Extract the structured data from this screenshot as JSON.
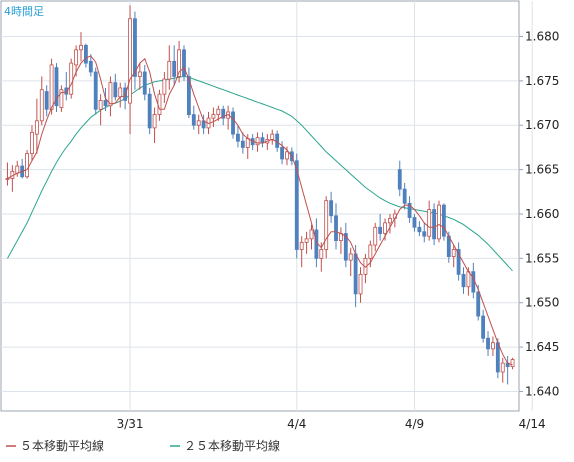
{
  "chart_data": {
    "type": "candlestick",
    "timeframe_label": "4時間足",
    "y_ticks": [
      "1.680",
      "1.675",
      "1.670",
      "1.665",
      "1.660",
      "1.655",
      "1.650",
      "1.645",
      "1.640"
    ],
    "y_tick_values": [
      1.68,
      1.675,
      1.67,
      1.665,
      1.66,
      1.655,
      1.65,
      1.645,
      1.64
    ],
    "ylim": [
      1.6378,
      1.684
    ],
    "x_ticks": [
      {
        "label": "3/31",
        "index": 25
      },
      {
        "label": "4/4",
        "index": 59
      },
      {
        "label": "4/9",
        "index": 83
      },
      {
        "label": "4/14",
        "index": 107
      }
    ],
    "legend": [
      {
        "label": "５本移動平均線",
        "color": "#c0504d"
      },
      {
        "label": "２５本移動平均線",
        "color": "#2ca58d"
      }
    ],
    "colors": {
      "up": "#ffffff",
      "up_border": "#c0504d",
      "down": "#4f81bd",
      "down_border": "#4f81bd",
      "grid": "#dde3ea",
      "axis": "#9aa4b2"
    },
    "grid": true,
    "legend_position": "bottom-left",
    "candles": [
      {
        "o": 1.664,
        "h": 1.6658,
        "l": 1.6632,
        "c": 1.664
      },
      {
        "o": 1.664,
        "h": 1.6655,
        "l": 1.6625,
        "c": 1.6648
      },
      {
        "o": 1.6646,
        "h": 1.666,
        "l": 1.6642,
        "c": 1.6654
      },
      {
        "o": 1.6654,
        "h": 1.6662,
        "l": 1.664,
        "c": 1.6642
      },
      {
        "o": 1.6642,
        "h": 1.6672,
        "l": 1.664,
        "c": 1.6668
      },
      {
        "o": 1.6668,
        "h": 1.67,
        "l": 1.666,
        "c": 1.6692
      },
      {
        "o": 1.669,
        "h": 1.673,
        "l": 1.6668,
        "c": 1.6705
      },
      {
        "o": 1.6705,
        "h": 1.6755,
        "l": 1.67,
        "c": 1.674
      },
      {
        "o": 1.6738,
        "h": 1.6745,
        "l": 1.671,
        "c": 1.6718
      },
      {
        "o": 1.6718,
        "h": 1.6775,
        "l": 1.6712,
        "c": 1.6768
      },
      {
        "o": 1.6765,
        "h": 1.677,
        "l": 1.6715,
        "c": 1.6722
      },
      {
        "o": 1.672,
        "h": 1.6745,
        "l": 1.6715,
        "c": 1.674
      },
      {
        "o": 1.6742,
        "h": 1.676,
        "l": 1.6728,
        "c": 1.6735
      },
      {
        "o": 1.6735,
        "h": 1.6775,
        "l": 1.673,
        "c": 1.677
      },
      {
        "o": 1.6768,
        "h": 1.679,
        "l": 1.6755,
        "c": 1.6785
      },
      {
        "o": 1.6785,
        "h": 1.6805,
        "l": 1.6772,
        "c": 1.679
      },
      {
        "o": 1.679,
        "h": 1.6792,
        "l": 1.6765,
        "c": 1.677
      },
      {
        "o": 1.6772,
        "h": 1.678,
        "l": 1.6755,
        "c": 1.676
      },
      {
        "o": 1.676,
        "h": 1.6765,
        "l": 1.6712,
        "c": 1.6718
      },
      {
        "o": 1.6718,
        "h": 1.6735,
        "l": 1.67,
        "c": 1.6728
      },
      {
        "o": 1.6728,
        "h": 1.6742,
        "l": 1.6716,
        "c": 1.6722
      },
      {
        "o": 1.6722,
        "h": 1.6755,
        "l": 1.671,
        "c": 1.6748
      },
      {
        "o": 1.6748,
        "h": 1.6758,
        "l": 1.6728,
        "c": 1.6732
      },
      {
        "o": 1.6732,
        "h": 1.6748,
        "l": 1.672,
        "c": 1.6742
      },
      {
        "o": 1.6742,
        "h": 1.6748,
        "l": 1.6718,
        "c": 1.6728
      },
      {
        "o": 1.6725,
        "h": 1.6835,
        "l": 1.669,
        "c": 1.682
      },
      {
        "o": 1.682,
        "h": 1.6828,
        "l": 1.674,
        "c": 1.6755
      },
      {
        "o": 1.6755,
        "h": 1.677,
        "l": 1.674,
        "c": 1.676
      },
      {
        "o": 1.676,
        "h": 1.6768,
        "l": 1.6728,
        "c": 1.6735
      },
      {
        "o": 1.6735,
        "h": 1.6742,
        "l": 1.669,
        "c": 1.6697
      },
      {
        "o": 1.6697,
        "h": 1.672,
        "l": 1.668,
        "c": 1.6712
      },
      {
        "o": 1.6712,
        "h": 1.674,
        "l": 1.6705,
        "c": 1.6735
      },
      {
        "o": 1.6735,
        "h": 1.676,
        "l": 1.6725,
        "c": 1.6752
      },
      {
        "o": 1.6752,
        "h": 1.679,
        "l": 1.674,
        "c": 1.6772
      },
      {
        "o": 1.6772,
        "h": 1.679,
        "l": 1.6745,
        "c": 1.6755
      },
      {
        "o": 1.6755,
        "h": 1.6795,
        "l": 1.6748,
        "c": 1.6785
      },
      {
        "o": 1.6785,
        "h": 1.679,
        "l": 1.675,
        "c": 1.6755
      },
      {
        "o": 1.6755,
        "h": 1.6765,
        "l": 1.6708,
        "c": 1.6712
      },
      {
        "o": 1.6712,
        "h": 1.6722,
        "l": 1.6695,
        "c": 1.67
      },
      {
        "o": 1.67,
        "h": 1.6712,
        "l": 1.669,
        "c": 1.6705
      },
      {
        "o": 1.6705,
        "h": 1.6712,
        "l": 1.669,
        "c": 1.6697
      },
      {
        "o": 1.6697,
        "h": 1.6715,
        "l": 1.669,
        "c": 1.6708
      },
      {
        "o": 1.6708,
        "h": 1.672,
        "l": 1.6698,
        "c": 1.6712
      },
      {
        "o": 1.6712,
        "h": 1.6722,
        "l": 1.6705,
        "c": 1.6718
      },
      {
        "o": 1.6718,
        "h": 1.6722,
        "l": 1.67,
        "c": 1.6708
      },
      {
        "o": 1.6708,
        "h": 1.6722,
        "l": 1.6695,
        "c": 1.6715
      },
      {
        "o": 1.6715,
        "h": 1.672,
        "l": 1.6685,
        "c": 1.669
      },
      {
        "o": 1.669,
        "h": 1.67,
        "l": 1.6675,
        "c": 1.6682
      },
      {
        "o": 1.6682,
        "h": 1.6692,
        "l": 1.6668,
        "c": 1.6675
      },
      {
        "o": 1.6675,
        "h": 1.669,
        "l": 1.6662,
        "c": 1.6685
      },
      {
        "o": 1.6685,
        "h": 1.669,
        "l": 1.6672,
        "c": 1.6678
      },
      {
        "o": 1.6678,
        "h": 1.6692,
        "l": 1.667,
        "c": 1.6686
      },
      {
        "o": 1.6686,
        "h": 1.6692,
        "l": 1.6675,
        "c": 1.668
      },
      {
        "o": 1.668,
        "h": 1.669,
        "l": 1.6672,
        "c": 1.6684
      },
      {
        "o": 1.6684,
        "h": 1.6695,
        "l": 1.6678,
        "c": 1.669
      },
      {
        "o": 1.669,
        "h": 1.6694,
        "l": 1.667,
        "c": 1.6675
      },
      {
        "o": 1.6675,
        "h": 1.6682,
        "l": 1.6656,
        "c": 1.6662
      },
      {
        "o": 1.6662,
        "h": 1.6676,
        "l": 1.6655,
        "c": 1.667
      },
      {
        "o": 1.667,
        "h": 1.6675,
        "l": 1.6655,
        "c": 1.666
      },
      {
        "o": 1.666,
        "h": 1.6668,
        "l": 1.655,
        "c": 1.656
      },
      {
        "o": 1.656,
        "h": 1.6575,
        "l": 1.654,
        "c": 1.6568
      },
      {
        "o": 1.6568,
        "h": 1.658,
        "l": 1.6555,
        "c": 1.6572
      },
      {
        "o": 1.6572,
        "h": 1.6588,
        "l": 1.656,
        "c": 1.6582
      },
      {
        "o": 1.6582,
        "h": 1.6595,
        "l": 1.654,
        "c": 1.655
      },
      {
        "o": 1.655,
        "h": 1.6568,
        "l": 1.6535,
        "c": 1.656
      },
      {
        "o": 1.656,
        "h": 1.662,
        "l": 1.655,
        "c": 1.6615
      },
      {
        "o": 1.6615,
        "h": 1.6625,
        "l": 1.659,
        "c": 1.6598
      },
      {
        "o": 1.6598,
        "h": 1.6612,
        "l": 1.656,
        "c": 1.657
      },
      {
        "o": 1.657,
        "h": 1.6585,
        "l": 1.6555,
        "c": 1.6578
      },
      {
        "o": 1.6578,
        "h": 1.659,
        "l": 1.654,
        "c": 1.6548
      },
      {
        "o": 1.6548,
        "h": 1.6562,
        "l": 1.653,
        "c": 1.6555
      },
      {
        "o": 1.6555,
        "h": 1.6565,
        "l": 1.6495,
        "c": 1.651
      },
      {
        "o": 1.651,
        "h": 1.654,
        "l": 1.65,
        "c": 1.6532
      },
      {
        "o": 1.6532,
        "h": 1.6555,
        "l": 1.6522,
        "c": 1.655
      },
      {
        "o": 1.655,
        "h": 1.657,
        "l": 1.654,
        "c": 1.6565
      },
      {
        "o": 1.6565,
        "h": 1.659,
        "l": 1.6558,
        "c": 1.6585
      },
      {
        "o": 1.6585,
        "h": 1.66,
        "l": 1.657,
        "c": 1.6578
      },
      {
        "o": 1.6578,
        "h": 1.6595,
        "l": 1.657,
        "c": 1.659
      },
      {
        "o": 1.659,
        "h": 1.66,
        "l": 1.6578,
        "c": 1.6595
      },
      {
        "o": 1.6595,
        "h": 1.6605,
        "l": 1.6585,
        "c": 1.66
      },
      {
        "o": 1.665,
        "h": 1.666,
        "l": 1.662,
        "c": 1.6628
      },
      {
        "o": 1.6628,
        "h": 1.6635,
        "l": 1.6605,
        "c": 1.6612
      },
      {
        "o": 1.6612,
        "h": 1.662,
        "l": 1.659,
        "c": 1.6596
      },
      {
        "o": 1.6596,
        "h": 1.66,
        "l": 1.658,
        "c": 1.6585
      },
      {
        "o": 1.6585,
        "h": 1.6592,
        "l": 1.6575,
        "c": 1.658
      },
      {
        "o": 1.658,
        "h": 1.659,
        "l": 1.6568,
        "c": 1.6575
      },
      {
        "o": 1.6575,
        "h": 1.6615,
        "l": 1.657,
        "c": 1.6605
      },
      {
        "o": 1.6605,
        "h": 1.6612,
        "l": 1.6565,
        "c": 1.6572
      },
      {
        "o": 1.6572,
        "h": 1.6615,
        "l": 1.6568,
        "c": 1.661
      },
      {
        "o": 1.661,
        "h": 1.6612,
        "l": 1.657,
        "c": 1.6575
      },
      {
        "o": 1.6575,
        "h": 1.658,
        "l": 1.6545,
        "c": 1.6552
      },
      {
        "o": 1.6552,
        "h": 1.6565,
        "l": 1.654,
        "c": 1.656
      },
      {
        "o": 1.656,
        "h": 1.6568,
        "l": 1.6525,
        "c": 1.6532
      },
      {
        "o": 1.6532,
        "h": 1.654,
        "l": 1.651,
        "c": 1.6518
      },
      {
        "o": 1.6518,
        "h": 1.654,
        "l": 1.6508,
        "c": 1.6535
      },
      {
        "o": 1.6535,
        "h": 1.6545,
        "l": 1.6505,
        "c": 1.6512
      },
      {
        "o": 1.6512,
        "h": 1.652,
        "l": 1.648,
        "c": 1.6485
      },
      {
        "o": 1.6485,
        "h": 1.6492,
        "l": 1.6455,
        "c": 1.646
      },
      {
        "o": 1.646,
        "h": 1.6468,
        "l": 1.644,
        "c": 1.6448
      },
      {
        "o": 1.6448,
        "h": 1.6462,
        "l": 1.644,
        "c": 1.6455
      },
      {
        "o": 1.6455,
        "h": 1.646,
        "l": 1.6415,
        "c": 1.6422
      },
      {
        "o": 1.6422,
        "h": 1.6438,
        "l": 1.641,
        "c": 1.6432
      },
      {
        "o": 1.6432,
        "h": 1.644,
        "l": 1.6408,
        "c": 1.6428
      },
      {
        "o": 1.6428,
        "h": 1.6438,
        "l": 1.6425,
        "c": 1.6436
      }
    ],
    "ma5": [
      1.664,
      1.6643,
      1.6646,
      1.6648,
      1.665,
      1.666,
      1.667,
      1.669,
      1.6706,
      1.672,
      1.673,
      1.6737,
      1.6737,
      1.6746,
      1.676,
      1.677,
      1.6776,
      1.6778,
      1.6771,
      1.6752,
      1.673,
      1.6724,
      1.6725,
      1.6732,
      1.6733,
      1.6752,
      1.676,
      1.677,
      1.6775,
      1.676,
      1.6735,
      1.6718,
      1.6718,
      1.6735,
      1.6745,
      1.676,
      1.6765,
      1.6752,
      1.6735,
      1.672,
      1.6705,
      1.6702,
      1.6704,
      1.6707,
      1.671,
      1.6712,
      1.6707,
      1.67,
      1.669,
      1.6685,
      1.6682,
      1.668,
      1.668,
      1.6682,
      1.6684,
      1.6681,
      1.6677,
      1.6672,
      1.6665,
      1.665,
      1.663,
      1.661,
      1.659,
      1.6568,
      1.6562,
      1.6572,
      1.658,
      1.658,
      1.6578,
      1.6575,
      1.6568,
      1.6555,
      1.6545,
      1.654,
      1.6545,
      1.6555,
      1.6565,
      1.6575,
      1.6585,
      1.6595,
      1.6605,
      1.661,
      1.661,
      1.6605,
      1.6598,
      1.659,
      1.6585,
      1.6585,
      1.6588,
      1.6585,
      1.6575,
      1.6565,
      1.6555,
      1.6545,
      1.6535,
      1.6528,
      1.6515,
      1.65,
      1.6485,
      1.647,
      1.6455,
      1.6442,
      1.6432,
      1.643
    ],
    "ma25": [
      1.655,
      1.656,
      1.657,
      1.658,
      1.659,
      1.6602,
      1.6614,
      1.6626,
      1.6637,
      1.6648,
      1.6658,
      1.6667,
      1.6675,
      1.6682,
      1.669,
      1.6697,
      1.6703,
      1.6709,
      1.6713,
      1.6717,
      1.672,
      1.6723,
      1.6725,
      1.6727,
      1.673,
      1.6734,
      1.6738,
      1.6742,
      1.6745,
      1.6747,
      1.6749,
      1.675,
      1.6751,
      1.6752,
      1.6753,
      1.6754,
      1.6755,
      1.6754,
      1.6752,
      1.675,
      1.6748,
      1.6746,
      1.6744,
      1.6742,
      1.674,
      1.6738,
      1.6736,
      1.6734,
      1.6732,
      1.673,
      1.6728,
      1.6726,
      1.6724,
      1.6722,
      1.672,
      1.6718,
      1.6716,
      1.6713,
      1.671,
      1.6705,
      1.67,
      1.6694,
      1.6688,
      1.6682,
      1.6676,
      1.667,
      1.6665,
      1.666,
      1.6655,
      1.665,
      1.6645,
      1.664,
      1.6635,
      1.663,
      1.6626,
      1.6622,
      1.6618,
      1.6615,
      1.6612,
      1.661,
      1.6608,
      1.6607,
      1.6606,
      1.6605,
      1.6604,
      1.6603,
      1.6602,
      1.6601,
      1.66,
      1.6598,
      1.6596,
      1.6594,
      1.6591,
      1.6588,
      1.6584,
      1.658,
      1.6576,
      1.6571,
      1.6566,
      1.656,
      1.6554,
      1.6548,
      1.6542,
      1.6536
    ]
  }
}
